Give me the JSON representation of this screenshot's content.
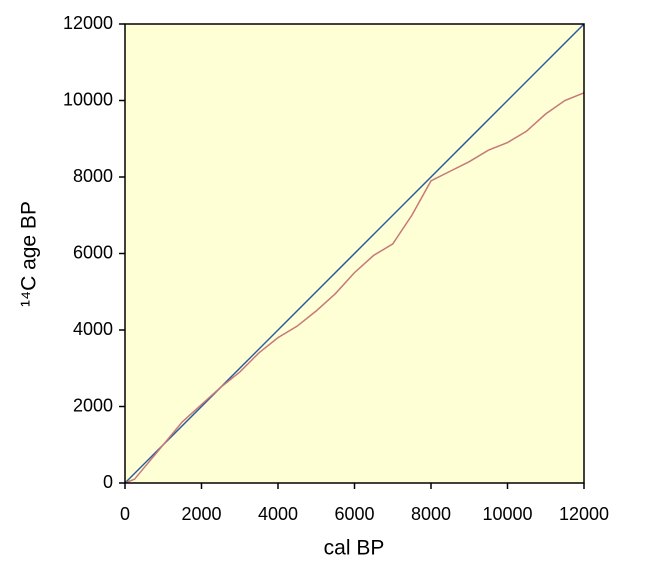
{
  "chart_data": {
    "type": "line",
    "x_label": "cal BP",
    "y_label": "¹⁴C age BP",
    "xlim": [
      0,
      12000
    ],
    "ylim": [
      0,
      12000
    ],
    "xticks": [
      0,
      2000,
      4000,
      6000,
      8000,
      10000,
      12000
    ],
    "yticks": [
      0,
      2000,
      4000,
      6000,
      8000,
      10000,
      12000
    ],
    "background": "#ffffd6",
    "series": [
      {
        "color": "#2a5aa0",
        "x": [
          0,
          12000
        ],
        "values": [
          0,
          12000
        ]
      },
      {
        "color": "#c87878",
        "x": [
          0,
          250,
          500,
          750,
          1000,
          1500,
          2000,
          2500,
          3000,
          3500,
          4000,
          4500,
          5000,
          5500,
          6000,
          6500,
          7000,
          7500,
          8000,
          8500,
          9000,
          9500,
          10000,
          10500,
          11000,
          11500,
          12000
        ],
        "values": [
          0,
          100,
          400,
          700,
          1000,
          1600,
          2050,
          2500,
          2900,
          3400,
          3800,
          4100,
          4500,
          4950,
          5500,
          5950,
          6250,
          7000,
          7900,
          8150,
          8400,
          8700,
          8900,
          9200,
          9650,
          10000,
          10200
        ]
      }
    ]
  }
}
